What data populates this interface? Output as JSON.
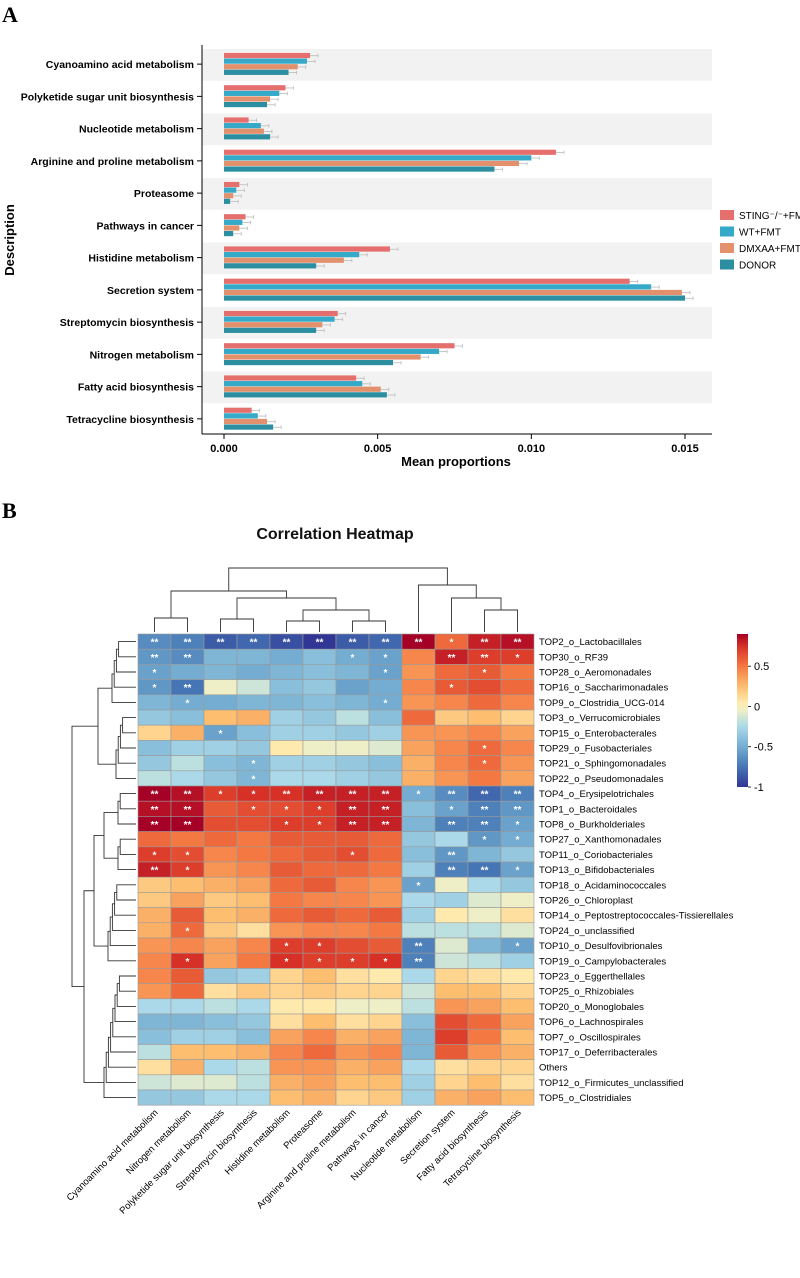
{
  "panels": {
    "a": "A",
    "b": "B"
  },
  "chart_data": [
    {
      "type": "bar",
      "orientation": "horizontal",
      "title": "",
      "xlabel": "Mean proportions",
      "ylabel": "Description",
      "xlim": [
        0,
        0.0158
      ],
      "xticks": [
        {
          "value": 0,
          "label": "0.000"
        },
        {
          "value": 0.005,
          "label": "0.005"
        },
        {
          "value": 0.01,
          "label": "0.010"
        },
        {
          "value": 0.015,
          "label": "0.015"
        }
      ],
      "categories": [
        "Cyanoamino acid metabolism",
        "Polyketide sugar unit biosynthesis",
        "Nucleotide metabolism",
        "Arginine and proline metabolism",
        "Proteasome",
        "Pathways in cancer",
        "Histidine metabolism",
        "Secretion system",
        "Streptomycin biosynthesis",
        "Nitrogen metabolism",
        "Fatty acid biosynthesis",
        "Tetracycline biosynthesis"
      ],
      "series": [
        {
          "name": "STING⁻/⁻+FMT",
          "color": "#e46f6c",
          "values": [
            0.0028,
            0.002,
            0.0008,
            0.0108,
            0.0005,
            0.0007,
            0.0054,
            0.0132,
            0.0037,
            0.0075,
            0.0043,
            0.0009
          ]
        },
        {
          "name": "WT+FMT",
          "color": "#35a9c8",
          "values": [
            0.0027,
            0.0018,
            0.0012,
            0.01,
            0.0004,
            0.0006,
            0.0044,
            0.0139,
            0.0036,
            0.007,
            0.0045,
            0.0011
          ]
        },
        {
          "name": "DMXAA+FMT",
          "color": "#e3906d",
          "values": [
            0.0024,
            0.0015,
            0.0013,
            0.0096,
            0.0003,
            0.0005,
            0.0039,
            0.0149,
            0.0032,
            0.0064,
            0.0051,
            0.0014
          ]
        },
        {
          "name": "DONOR",
          "color": "#2c8fa1",
          "values": [
            0.0021,
            0.0014,
            0.0015,
            0.0088,
            0.0002,
            0.0003,
            0.003,
            0.015,
            0.003,
            0.0055,
            0.0053,
            0.0016
          ]
        }
      ]
    },
    {
      "type": "heatmap",
      "title": "Correlation Heatmap",
      "colorbar": {
        "ticks": [
          0.5,
          0,
          -0.5,
          -1
        ],
        "tick_labels": [
          "0.5",
          "0",
          "-0.5",
          "-1"
        ],
        "range": [
          -1,
          0.9
        ]
      },
      "columns": [
        "Cyanoamino acid metabolism",
        "Nitrogen metabolism",
        "Polyketide sugar unit biosynthesis",
        "Streptomycin biosynthesis",
        "Histidine metabolism",
        "Proteasome",
        "Arginine and proline metabolism",
        "Pathways in cancer",
        "Nucleotide metabolism",
        "Secretion system",
        "Fatty acid biosynthesis",
        "Tetracycline biosynthesis"
      ],
      "rows": [
        "TOP2_o_Lactobacillales",
        "TOP30_o_RF39",
        "TOP28_o_Aeromonadales",
        "TOP16_o_Saccharimonadales",
        "TOP9_o_Clostridia_UCG-014",
        "TOP3_o_Verrucomicrobiales",
        "TOP15_o_Enterobacterales",
        "TOP29_o_Fusobacteriales",
        "TOP21_o_Sphingomonadales",
        "TOP22_o_Pseudomonadales",
        "TOP4_o_Erysipelotrichales",
        "TOP1_o_Bacteroidales",
        "TOP8_o_Burkholderiales",
        "TOP27_o_Xanthomonadales",
        "TOP11_o_Coriobacteriales",
        "TOP13_o_Bifidobacteriales",
        "TOP18_o_Acidaminococcales",
        "TOP26_o_Chloroplast",
        "TOP14_o_Peptostreptococcales-Tissierellales",
        "TOP24_o_unclassified",
        "TOP10_o_Desulfovibrionales",
        "TOP19_o_Campylobacterales",
        "TOP23_o_Eggerthellales",
        "TOP25_o_Rhizobiales",
        "TOP20_o_Monoglobales",
        "TOP6_o_Lachnospirales",
        "TOP7_o_Oscillospirales",
        "TOP17_o_Deferribacterales",
        "Others",
        "TOP12_o_Firmicutes_unclassified",
        "TOP5_o_Clostridiales"
      ],
      "values": [
        [
          -0.65,
          -0.7,
          -0.85,
          -0.8,
          -0.9,
          -1.0,
          -0.85,
          -0.8,
          0.9,
          0.55,
          0.8,
          0.85
        ],
        [
          -0.6,
          -0.65,
          -0.45,
          -0.45,
          -0.5,
          -0.4,
          -0.5,
          -0.55,
          0.45,
          0.8,
          0.7,
          0.7
        ],
        [
          -0.55,
          -0.5,
          -0.45,
          -0.5,
          -0.45,
          -0.4,
          -0.45,
          -0.55,
          0.4,
          0.55,
          0.6,
          0.5
        ],
        [
          -0.6,
          -0.75,
          -0.05,
          -0.15,
          -0.4,
          -0.35,
          -0.55,
          -0.5,
          0.45,
          0.6,
          0.65,
          0.55
        ],
        [
          -0.45,
          -0.5,
          -0.5,
          -0.45,
          -0.45,
          -0.4,
          -0.45,
          -0.5,
          0.4,
          0.45,
          0.55,
          0.45
        ],
        [
          -0.35,
          -0.4,
          0.25,
          0.3,
          -0.3,
          -0.35,
          -0.2,
          -0.4,
          0.55,
          0.2,
          0.25,
          0.15
        ],
        [
          0.15,
          0.3,
          -0.55,
          -0.4,
          -0.3,
          -0.3,
          -0.35,
          -0.3,
          0.4,
          0.4,
          0.45,
          0.35
        ],
        [
          -0.4,
          -0.3,
          -0.3,
          -0.35,
          0.05,
          -0.05,
          -0.05,
          -0.1,
          0.35,
          0.45,
          0.55,
          0.45
        ],
        [
          -0.35,
          -0.2,
          -0.4,
          -0.45,
          -0.3,
          -0.3,
          -0.35,
          -0.4,
          0.3,
          0.45,
          0.55,
          0.4
        ],
        [
          -0.2,
          -0.25,
          -0.35,
          -0.45,
          -0.25,
          -0.25,
          -0.3,
          -0.35,
          0.3,
          0.4,
          0.5,
          0.35
        ],
        [
          0.9,
          0.85,
          0.7,
          0.75,
          0.75,
          0.8,
          0.8,
          0.8,
          -0.5,
          -0.65,
          -0.8,
          -0.7
        ],
        [
          0.85,
          0.85,
          0.6,
          0.65,
          0.65,
          0.7,
          0.8,
          0.8,
          -0.4,
          -0.55,
          -0.7,
          -0.6
        ],
        [
          0.9,
          0.9,
          0.65,
          0.65,
          0.7,
          0.7,
          0.8,
          0.8,
          -0.45,
          -0.7,
          -0.7,
          -0.55
        ],
        [
          0.55,
          0.5,
          0.55,
          0.5,
          0.6,
          0.6,
          0.6,
          0.55,
          -0.35,
          -0.25,
          -0.6,
          -0.5
        ],
        [
          0.7,
          0.65,
          0.45,
          0.5,
          0.55,
          0.6,
          0.65,
          0.55,
          -0.4,
          -0.6,
          -0.45,
          -0.35
        ],
        [
          0.8,
          0.7,
          0.4,
          0.45,
          0.6,
          0.55,
          0.55,
          0.5,
          -0.3,
          -0.7,
          -0.75,
          -0.55
        ],
        [
          0.2,
          0.25,
          0.3,
          0.35,
          0.55,
          0.6,
          0.45,
          0.4,
          -0.55,
          -0.05,
          -0.25,
          -0.35
        ],
        [
          0.2,
          0.35,
          0.2,
          0.25,
          0.5,
          0.45,
          0.45,
          0.4,
          -0.25,
          -0.3,
          -0.1,
          -0.05
        ],
        [
          0.3,
          0.6,
          0.25,
          0.3,
          0.55,
          0.6,
          0.55,
          0.6,
          -0.3,
          0.05,
          -0.05,
          0.1
        ],
        [
          0.3,
          0.55,
          0.2,
          0.1,
          0.4,
          0.45,
          0.45,
          0.5,
          -0.2,
          -0.2,
          -0.2,
          -0.1
        ],
        [
          0.4,
          0.45,
          0.35,
          0.45,
          0.7,
          0.7,
          0.65,
          0.6,
          -0.7,
          -0.1,
          -0.45,
          -0.55
        ],
        [
          0.45,
          0.75,
          0.35,
          0.5,
          0.75,
          0.7,
          0.7,
          0.75,
          -0.7,
          -0.15,
          -0.2,
          -0.3
        ],
        [
          0.45,
          0.6,
          -0.35,
          -0.3,
          0.15,
          0.25,
          0.1,
          0.05,
          -0.25,
          0.15,
          0.1,
          0.05
        ],
        [
          0.4,
          0.55,
          0.1,
          0.2,
          0.15,
          0.2,
          0.15,
          0.15,
          -0.15,
          0.25,
          0.25,
          0.15
        ],
        [
          -0.25,
          -0.25,
          -0.2,
          -0.25,
          0.05,
          0.05,
          -0.05,
          -0.05,
          -0.2,
          0.4,
          0.35,
          0.25
        ],
        [
          -0.45,
          -0.45,
          -0.4,
          -0.35,
          0.1,
          0.25,
          0.1,
          0.15,
          -0.4,
          0.65,
          0.55,
          0.35
        ],
        [
          -0.4,
          -0.3,
          -0.3,
          -0.4,
          0.35,
          0.45,
          0.3,
          0.35,
          -0.45,
          0.7,
          0.5,
          0.25
        ],
        [
          -0.2,
          0.25,
          0.25,
          0.3,
          0.45,
          0.55,
          0.4,
          0.45,
          -0.45,
          0.6,
          0.4,
          0.3
        ],
        [
          0.1,
          0.3,
          -0.25,
          -0.2,
          0.4,
          0.4,
          0.3,
          0.35,
          -0.25,
          0.1,
          0.15,
          0.15
        ],
        [
          -0.15,
          -0.1,
          -0.1,
          -0.2,
          0.3,
          0.35,
          0.25,
          0.25,
          -0.3,
          0.15,
          0.25,
          0.1
        ],
        [
          -0.35,
          -0.35,
          -0.25,
          -0.25,
          0.25,
          0.3,
          0.15,
          0.2,
          -0.3,
          0.3,
          0.35,
          0.25
        ]
      ],
      "significance": [
        [
          "**",
          "**",
          "**",
          "**",
          "**",
          "**",
          "**",
          "**",
          "**",
          "*",
          "**",
          "**"
        ],
        [
          "**",
          "**",
          "",
          "",
          "",
          "",
          "*",
          "*",
          "",
          "**",
          "**",
          "*"
        ],
        [
          "*",
          "",
          "",
          "",
          "",
          "",
          "",
          "*",
          "",
          "",
          "*",
          ""
        ],
        [
          "*",
          "**",
          "",
          "",
          "",
          "",
          "",
          "",
          "",
          "*",
          "",
          ""
        ],
        [
          "",
          "*",
          "",
          "",
          "",
          "",
          "",
          "*",
          "",
          "",
          "",
          ""
        ],
        [
          "",
          "",
          "",
          "",
          "",
          "",
          "",
          "",
          "",
          "",
          "",
          ""
        ],
        [
          "",
          "",
          "*",
          "",
          "",
          "",
          "",
          "",
          "",
          "",
          "",
          ""
        ],
        [
          "",
          "",
          "",
          "",
          "",
          "",
          "",
          "",
          "",
          "",
          "*",
          ""
        ],
        [
          "",
          "",
          "",
          "*",
          "",
          "",
          "",
          "",
          "",
          "",
          "*",
          ""
        ],
        [
          "",
          "",
          "",
          "*",
          "",
          "",
          "",
          "",
          "",
          "",
          "",
          ""
        ],
        [
          "**",
          "**",
          "*",
          "*",
          "**",
          "**",
          "**",
          "**",
          "*",
          "**",
          "**",
          "**"
        ],
        [
          "**",
          "**",
          "",
          "*",
          "*",
          "*",
          "**",
          "**",
          "",
          "*",
          "**",
          "**"
        ],
        [
          "**",
          "**",
          "",
          "",
          "*",
          "*",
          "**",
          "**",
          "",
          "**",
          "**",
          "*"
        ],
        [
          "",
          "",
          "",
          "",
          "",
          "",
          "",
          "",
          "",
          "",
          "*",
          "*"
        ],
        [
          "*",
          "*",
          "",
          "",
          "",
          "",
          "*",
          "",
          "",
          "**",
          "",
          ""
        ],
        [
          "**",
          "*",
          "",
          "",
          "",
          "",
          "",
          "",
          "",
          "**",
          "**",
          "*"
        ],
        [
          "",
          "",
          "",
          "",
          "",
          "",
          "",
          "",
          "*",
          "",
          "",
          ""
        ],
        [
          "",
          "",
          "",
          "",
          "",
          "",
          "",
          "",
          "",
          "",
          "",
          ""
        ],
        [
          "",
          "",
          "",
          "",
          "",
          "",
          "",
          "",
          "",
          "",
          "",
          ""
        ],
        [
          "",
          "*",
          "",
          "",
          "",
          "",
          "",
          "",
          "",
          "",
          "",
          ""
        ],
        [
          "",
          "",
          "",
          "",
          "*",
          "*",
          "",
          "",
          "**",
          "",
          "",
          "*"
        ],
        [
          "",
          "*",
          "",
          "",
          "*",
          "*",
          "*",
          "*",
          "**",
          "",
          "",
          ""
        ],
        [
          "",
          "",
          "",
          "",
          "",
          "",
          "",
          "",
          "",
          "",
          "",
          ""
        ],
        [
          "",
          "",
          "",
          "",
          "",
          "",
          "",
          "",
          "",
          "",
          "",
          ""
        ],
        [
          "",
          "",
          "",
          "",
          "",
          "",
          "",
          "",
          "",
          "",
          "",
          ""
        ],
        [
          "",
          "",
          "",
          "",
          "",
          "",
          "",
          "",
          "",
          "",
          "",
          ""
        ],
        [
          "",
          "",
          "",
          "",
          "",
          "",
          "",
          "",
          "",
          "",
          "",
          ""
        ],
        [
          "",
          "",
          "",
          "",
          "",
          "",
          "",
          "",
          "",
          "",
          "",
          ""
        ],
        [
          "",
          "",
          "",
          "",
          "",
          "",
          "",
          "",
          "",
          "",
          "",
          ""
        ],
        [
          "",
          "",
          "",
          "",
          "",
          "",
          "",
          "",
          "",
          "",
          "",
          ""
        ],
        [
          "",
          "",
          "",
          "",
          "",
          "",
          "",
          "",
          "",
          "",
          "",
          ""
        ]
      ]
    }
  ]
}
